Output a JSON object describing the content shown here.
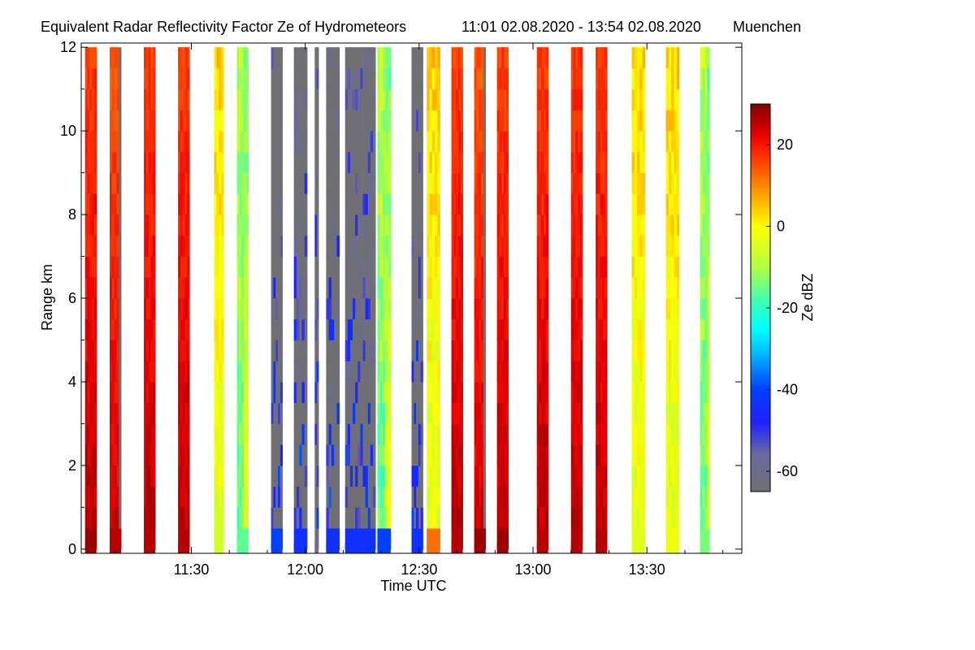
{
  "chart_data": {
    "type": "heatmap",
    "title": "Equivalent Radar Reflectivity Factor Ze of Hydrometeors",
    "time_range_label": "11:01 02.08.2020 - 13:54 02.08.2020",
    "location": "Muenchen",
    "xlabel": "Time UTC",
    "ylabel": "Range km",
    "xlim": [
      661,
      835
    ],
    "ylim": [
      -0.1,
      12.1
    ],
    "x_ticks": [
      {
        "minute": 690,
        "label": "11:30"
      },
      {
        "minute": 720,
        "label": "12:00"
      },
      {
        "minute": 750,
        "label": "12:30"
      },
      {
        "minute": 780,
        "label": "13:00"
      },
      {
        "minute": 810,
        "label": "13:30"
      }
    ],
    "y_ticks": [
      {
        "value": 0,
        "label": "0"
      },
      {
        "value": 2,
        "label": "2"
      },
      {
        "value": 4,
        "label": "4"
      },
      {
        "value": 6,
        "label": "6"
      },
      {
        "value": 8,
        "label": "8"
      },
      {
        "value": 10,
        "label": "10"
      },
      {
        "value": 12,
        "label": "12"
      }
    ],
    "colorbar": {
      "label": "Ze dBZ",
      "min": -65,
      "max": 30,
      "ticks": [
        {
          "value": 20,
          "label": "20"
        },
        {
          "value": 0,
          "label": "0"
        },
        {
          "value": -20,
          "label": "-20"
        },
        {
          "value": -40,
          "label": "-40"
        },
        {
          "value": -60,
          "label": "-60"
        }
      ],
      "colors": [
        {
          "value": -65,
          "color": "#707070"
        },
        {
          "value": -56,
          "color": "#6a6aa0"
        },
        {
          "value": -48,
          "color": "#2020ff"
        },
        {
          "value": -40,
          "color": "#0040ff"
        },
        {
          "value": -30,
          "color": "#00c8ff"
        },
        {
          "value": -25,
          "color": "#00ffff"
        },
        {
          "value": -18,
          "color": "#40ffb0"
        },
        {
          "value": -10,
          "color": "#b0ff40"
        },
        {
          "value": 0,
          "color": "#ffff00"
        },
        {
          "value": 8,
          "color": "#ffa000"
        },
        {
          "value": 16,
          "color": "#ff4000"
        },
        {
          "value": 22,
          "color": "#ee0000"
        },
        {
          "value": 30,
          "color": "#800000"
        }
      ]
    },
    "no_data_color": "#808080",
    "profiles": [
      {
        "t0": 662.0,
        "t1": 665.0,
        "kind": "strong",
        "surface": 28
      },
      {
        "t0": 668.5,
        "t1": 671.5,
        "kind": "strong_gap",
        "surface": 26
      },
      {
        "t0": 677.5,
        "t1": 680.5,
        "kind": "strong",
        "surface": 26
      },
      {
        "t0": 686.5,
        "t1": 689.5,
        "kind": "strong",
        "surface": 26
      },
      {
        "t0": 696.0,
        "t1": 698.5,
        "kind": "moderate",
        "surface": -6
      },
      {
        "t0": 702.0,
        "t1": 705.0,
        "kind": "mixed",
        "surface": -16
      },
      {
        "t0": 711.0,
        "t1": 714.0,
        "kind": "weak",
        "surface": -40
      },
      {
        "t0": 717.0,
        "t1": 720.5,
        "kind": "weak",
        "surface": -44
      },
      {
        "t0": 722.5,
        "t1": 723.5,
        "kind": "weak",
        "surface": -60
      },
      {
        "t0": 725.5,
        "t1": 729.0,
        "kind": "weak",
        "surface": -44
      },
      {
        "t0": 730.5,
        "t1": 738.5,
        "kind": "weak",
        "surface": -44
      },
      {
        "t0": 739.0,
        "t1": 742.5,
        "kind": "mixed",
        "surface": -40
      },
      {
        "t0": 748.0,
        "t1": 751.0,
        "kind": "weak",
        "surface": -44
      },
      {
        "t0": 752.0,
        "t1": 755.5,
        "kind": "moderate",
        "surface": 12
      },
      {
        "t0": 758.5,
        "t1": 761.5,
        "kind": "strong",
        "surface": 26
      },
      {
        "t0": 764.5,
        "t1": 767.5,
        "kind": "strong_gap",
        "surface": 28
      },
      {
        "t0": 770.5,
        "t1": 773.5,
        "kind": "strong",
        "surface": 28
      },
      {
        "t0": 781.0,
        "t1": 784.0,
        "kind": "strong",
        "surface": 26
      },
      {
        "t0": 790.0,
        "t1": 793.0,
        "kind": "strong",
        "surface": 26
      },
      {
        "t0": 796.5,
        "t1": 799.5,
        "kind": "strong",
        "surface": 26
      },
      {
        "t0": 806.0,
        "t1": 809.5,
        "kind": "moderate",
        "surface": -4
      },
      {
        "t0": 815.0,
        "t1": 818.5,
        "kind": "moderate",
        "surface": -2
      },
      {
        "t0": 824.0,
        "t1": 826.5,
        "kind": "mixed",
        "surface": -14
      }
    ]
  }
}
